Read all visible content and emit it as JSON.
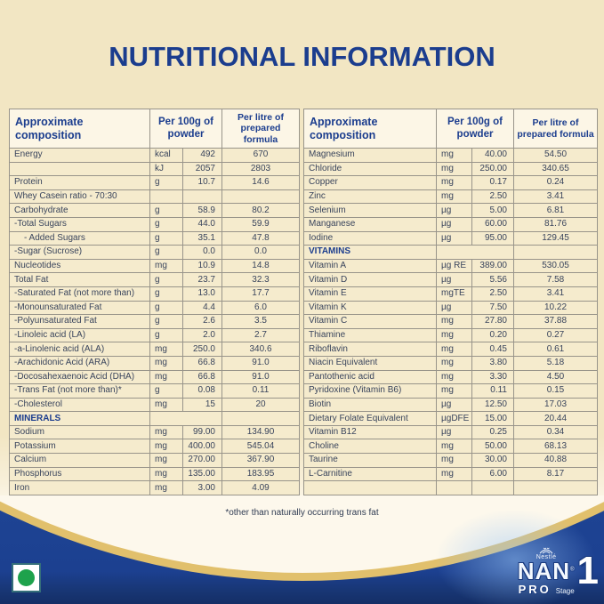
{
  "page": {
    "title": "NUTRITIONAL INFORMATION",
    "footnote": "*other than naturally occurring trans fat"
  },
  "colors": {
    "background_cream": "#f2e6c3",
    "cell_cream": "#f5ebcd",
    "accent_blue": "#1b3d8e",
    "gold_band": "#e1c06c",
    "bottom_blue": "#1c4192",
    "veg_green": "#1ea24c"
  },
  "left_table": {
    "headers": {
      "composition": "Approximate\ncomposition",
      "per_100g": "Per 100g of\npowder",
      "per_litre": "Per litre of\nprepared formula"
    },
    "rows": [
      {
        "n": "Energy",
        "u": "kcal",
        "a": "492",
        "b": "670"
      },
      {
        "n": "",
        "u": "kJ",
        "a": "2057",
        "b": "2803"
      },
      {
        "n": "Protein",
        "u": "g",
        "a": "10.7",
        "b": "14.6"
      },
      {
        "n": "Whey Casein ratio - 70:30",
        "u": "",
        "a": "",
        "b": ""
      },
      {
        "n": "Carbohydrate",
        "u": "g",
        "a": "58.9",
        "b": "80.2"
      },
      {
        "n": "-Total Sugars",
        "u": "g",
        "a": "44.0",
        "b": "59.9"
      },
      {
        "n": "- Added Sugars",
        "u": "g",
        "a": "35.1",
        "b": "47.8",
        "i": true
      },
      {
        "n": "-Sugar (Sucrose)",
        "u": "g",
        "a": "0.0",
        "b": "0.0"
      },
      {
        "n": "Nucleotides",
        "u": "mg",
        "a": "10.9",
        "b": "14.8"
      },
      {
        "n": "Total Fat",
        "u": "g",
        "a": "23.7",
        "b": "32.3"
      },
      {
        "n": "-Saturated Fat (not more than)",
        "u": "g",
        "a": "13.0",
        "b": "17.7"
      },
      {
        "n": "-Monounsaturated Fat",
        "u": "g",
        "a": "4.4",
        "b": "6.0"
      },
      {
        "n": "-Polyunsaturated Fat",
        "u": "g",
        "a": "2.6",
        "b": "3.5"
      },
      {
        "n": "-Linoleic acid (LA)",
        "u": "g",
        "a": "2.0",
        "b": "2.7"
      },
      {
        "n": "-a-Linolenic acid (ALA)",
        "u": "mg",
        "a": "250.0",
        "b": "340.6"
      },
      {
        "n": "-Arachidonic Acid (ARA)",
        "u": "mg",
        "a": "66.8",
        "b": "91.0"
      },
      {
        "n": "-Docosahexaenoic Acid (DHA)",
        "u": "mg",
        "a": "66.8",
        "b": "91.0"
      },
      {
        "n": "-Trans Fat (not more than)*",
        "u": "g",
        "a": "0.08",
        "b": "0.11"
      },
      {
        "n": "-Cholesterol",
        "u": "mg",
        "a": "15",
        "b": "20"
      },
      {
        "n": "MINERALS",
        "s": true
      },
      {
        "n": "Sodium",
        "u": "mg",
        "a": "99.00",
        "b": "134.90"
      },
      {
        "n": "Potassium",
        "u": "mg",
        "a": "400.00",
        "b": "545.04"
      },
      {
        "n": "Calcium",
        "u": "mg",
        "a": "270.00",
        "b": "367.90"
      },
      {
        "n": "Phosphorus",
        "u": "mg",
        "a": "135.00",
        "b": "183.95"
      },
      {
        "n": "Iron",
        "u": "mg",
        "a": "3.00",
        "b": "4.09"
      }
    ]
  },
  "right_table": {
    "headers": {
      "composition": "Approximate\ncomposition",
      "per_100g": "Per 100g of\npowder",
      "per_litre": "Per litre of\nprepared formula"
    },
    "rows": [
      {
        "n": "Magnesium",
        "u": "mg",
        "a": "40.00",
        "b": "54.50"
      },
      {
        "n": "Chloride",
        "u": "mg",
        "a": "250.00",
        "b": "340.65"
      },
      {
        "n": "Copper",
        "u": "mg",
        "a": "0.17",
        "b": "0.24"
      },
      {
        "n": "Zinc",
        "u": "mg",
        "a": "2.50",
        "b": "3.41"
      },
      {
        "n": "Selenium",
        "u": "µg",
        "a": "5.00",
        "b": "6.81"
      },
      {
        "n": "Manganese",
        "u": "µg",
        "a": "60.00",
        "b": "81.76"
      },
      {
        "n": "Iodine",
        "u": "µg",
        "a": "95.00",
        "b": "129.45"
      },
      {
        "n": "VITAMINS",
        "s": true
      },
      {
        "n": "Vitamin A",
        "u": "µg RE",
        "a": "389.00",
        "b": "530.05"
      },
      {
        "n": "Vitamin D",
        "u": "µg",
        "a": "5.56",
        "b": "7.58"
      },
      {
        "n": "Vitamin E",
        "u": "mgTE",
        "a": "2.50",
        "b": "3.41"
      },
      {
        "n": "Vitamin K",
        "u": "µg",
        "a": "7.50",
        "b": "10.22"
      },
      {
        "n": "Vitamin C",
        "u": "mg",
        "a": "27.80",
        "b": "37.88"
      },
      {
        "n": "Thiamine",
        "u": "mg",
        "a": "0.20",
        "b": "0.27"
      },
      {
        "n": "Riboflavin",
        "u": "mg",
        "a": "0.45",
        "b": "0.61"
      },
      {
        "n": "Niacin Equivalent",
        "u": "mg",
        "a": "3.80",
        "b": "5.18"
      },
      {
        "n": "Pantothenic acid",
        "u": "mg",
        "a": "3.30",
        "b": "4.50"
      },
      {
        "n": "Pyridoxine (Vitamin B6)",
        "u": "mg",
        "a": "0.11",
        "b": "0.15"
      },
      {
        "n": "Biotin",
        "u": "µg",
        "a": "12.50",
        "b": "17.03"
      },
      {
        "n": "Dietary Folate Equivalent",
        "u": "µgDFE",
        "a": "15.00",
        "b": "20.44"
      },
      {
        "n": "Vitamin B12",
        "u": "µg",
        "a": "0.25",
        "b": "0.34"
      },
      {
        "n": "Choline",
        "u": "mg",
        "a": "50.00",
        "b": "68.13"
      },
      {
        "n": "Taurine",
        "u": "mg",
        "a": "30.00",
        "b": "40.88"
      },
      {
        "n": "L-Carnitine",
        "u": "mg",
        "a": "6.00",
        "b": "8.17"
      },
      {
        "n": "",
        "u": "",
        "a": "",
        "b": ""
      }
    ]
  },
  "brand": {
    "nestle": "Nestlé",
    "name": "NAN",
    "reg": "®",
    "sub": "PRO",
    "stage_label": "Stage",
    "stage_number": "1"
  }
}
